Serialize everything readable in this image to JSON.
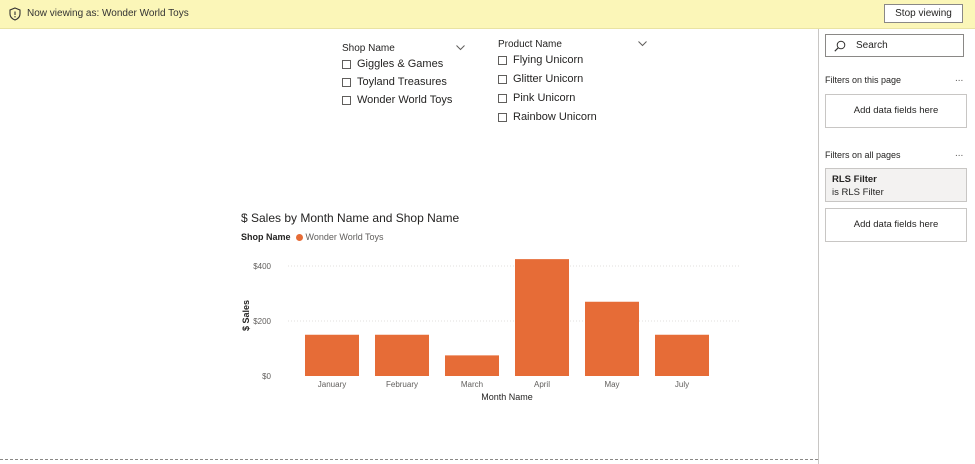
{
  "banner": {
    "viewing_text": "Now viewing as: Wonder World Toys",
    "stop_label": "Stop viewing",
    "icon": "shield-icon"
  },
  "slicers": {
    "shop": {
      "header": "Shop Name",
      "items": [
        "Giggles & Games",
        "Toyland Treasures",
        "Wonder World Toys"
      ]
    },
    "product": {
      "header": "Product Name",
      "items": [
        "Flying Unicorn",
        "Glitter Unicorn",
        "Pink Unicorn",
        "Rainbow Unicorn"
      ]
    }
  },
  "chart_data": {
    "type": "bar",
    "title": "$ Sales by Month Name and Shop Name",
    "legend_title": "Shop Name",
    "legend_position": "top-left",
    "categories": [
      "January",
      "February",
      "March",
      "April",
      "May",
      "July"
    ],
    "series": [
      {
        "name": "Wonder World Toys",
        "values": [
          150,
          150,
          75,
          425,
          270,
          150
        ]
      }
    ],
    "xlabel": "Month Name",
    "ylabel": "$ Sales",
    "yticks": [
      "$0",
      "$200",
      "$400"
    ],
    "ytick_values": [
      0,
      200,
      400
    ],
    "ylim": [
      0,
      440
    ],
    "grid": true,
    "color": "#e66c37"
  },
  "filters": {
    "search_placeholder": "Search",
    "on_this_page": "Filters on this page",
    "on_all_pages": "Filters on all pages",
    "add_fields": "Add data fields here",
    "rls_title": "RLS Filter",
    "rls_sub": "is RLS Filter",
    "more": "..."
  }
}
